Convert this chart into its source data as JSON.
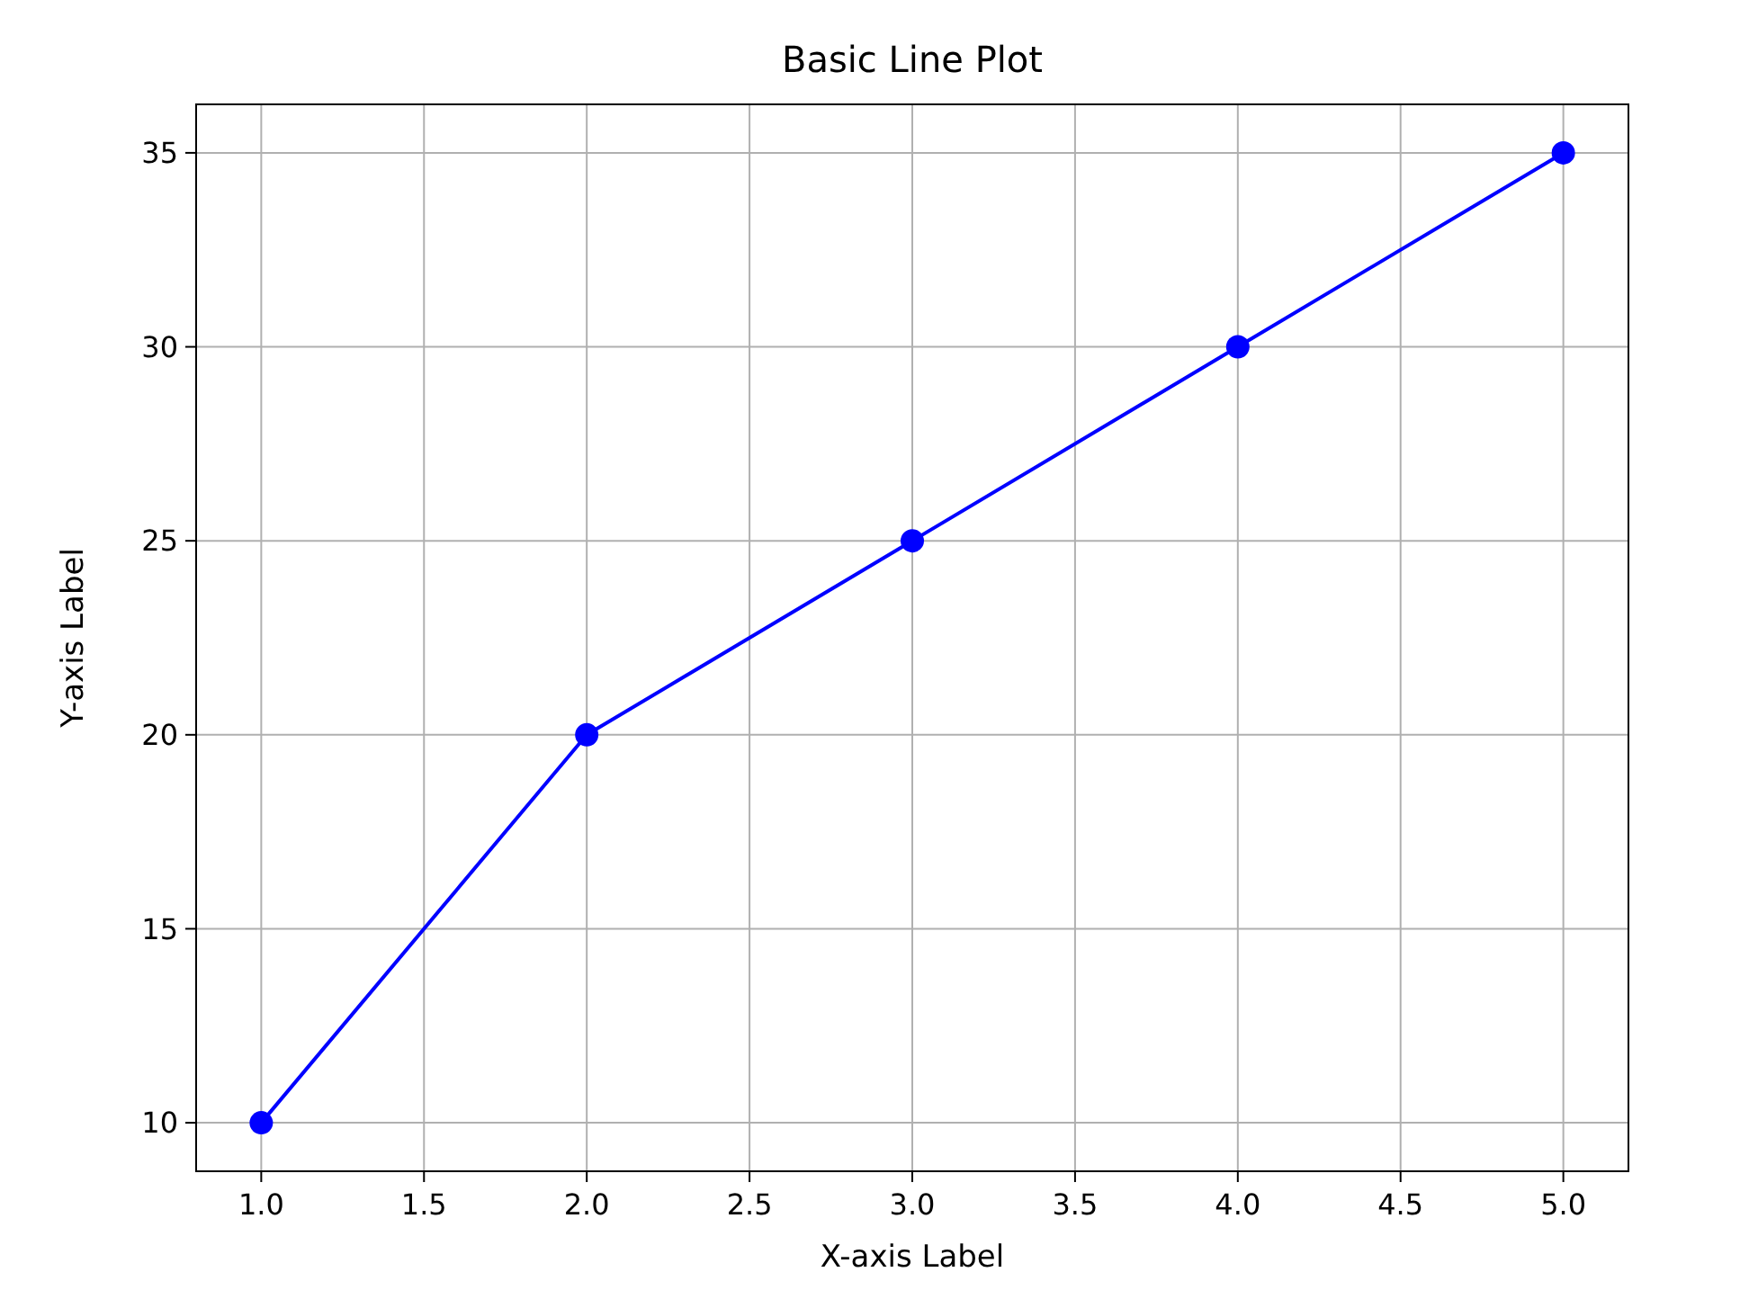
{
  "chart_data": {
    "type": "line",
    "title": "Basic Line Plot",
    "xlabel": "X-axis Label",
    "ylabel": "Y-axis Label",
    "x": [
      1,
      2,
      3,
      4,
      5
    ],
    "series": [
      {
        "color": "#0000ff",
        "values": [
          10,
          20,
          25,
          30,
          35
        ]
      }
    ],
    "xlim": [
      0.8,
      5.2
    ],
    "xticks": [
      {
        "value": 1,
        "label": "1.0"
      },
      {
        "value": 1.5,
        "label": "1.5"
      },
      {
        "value": 2,
        "label": "2.0"
      },
      {
        "value": 2.5,
        "label": "2.5"
      },
      {
        "value": 3,
        "label": "3.0"
      },
      {
        "value": 3.5,
        "label": "3.5"
      },
      {
        "value": 4,
        "label": "4.0"
      },
      {
        "value": 4.5,
        "label": "4.5"
      },
      {
        "value": 5,
        "label": "5.0"
      }
    ],
    "ylim": [
      8.75,
      36.25
    ],
    "yticks": [
      10,
      15,
      20,
      25,
      30,
      35
    ],
    "grid": true,
    "marker": "circle",
    "line_style": "solid"
  }
}
